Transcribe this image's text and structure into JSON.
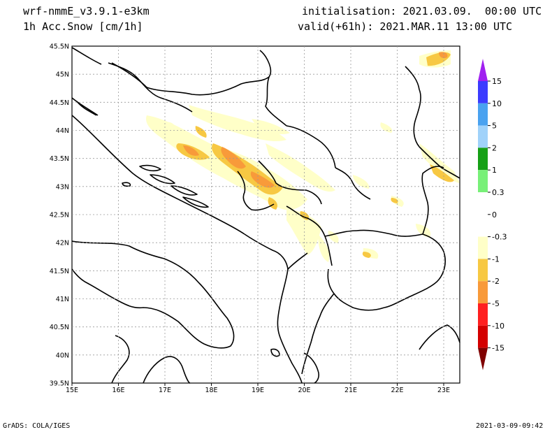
{
  "header": {
    "model": "wrf-nmmE_v3.9.1-e3km",
    "field": "1h Acc.Snow [cm/1h]",
    "init": "initialisation: 2021.03.09.  00:00 UTC",
    "valid": "valid(+61h): 2021.MAR.11 13:00 UTC"
  },
  "footer": {
    "credit": "GrADS: COLA/IGES",
    "timestamp": "2021-03-09-09:42"
  },
  "map": {
    "lon_ticks": [
      "15E",
      "16E",
      "17E",
      "18E",
      "19E",
      "20E",
      "21E",
      "22E",
      "23E"
    ],
    "lat_ticks": [
      "45.5N",
      "45N",
      "44.5N",
      "44N",
      "43.5N",
      "43N",
      "42.5N",
      "42N",
      "41.5N",
      "41N",
      "40.5N",
      "40N",
      "39.5N"
    ]
  },
  "colorbar": {
    "labels": [
      "15",
      "10",
      "5",
      "2",
      "1",
      "0.3",
      "0",
      "-0.3",
      "-1",
      "-2",
      "-5",
      "-10",
      "-15"
    ],
    "colors": [
      "#a020f0",
      "#3c3cff",
      "#4aa2f0",
      "#a0d2fa",
      "#16a016",
      "#78f078",
      "#ffffff",
      "#ffffff",
      "#ffffc8",
      "#f7c843",
      "#f89a3a",
      "#ff2020",
      "#d40000",
      "#9a0000",
      "#800000"
    ]
  }
}
